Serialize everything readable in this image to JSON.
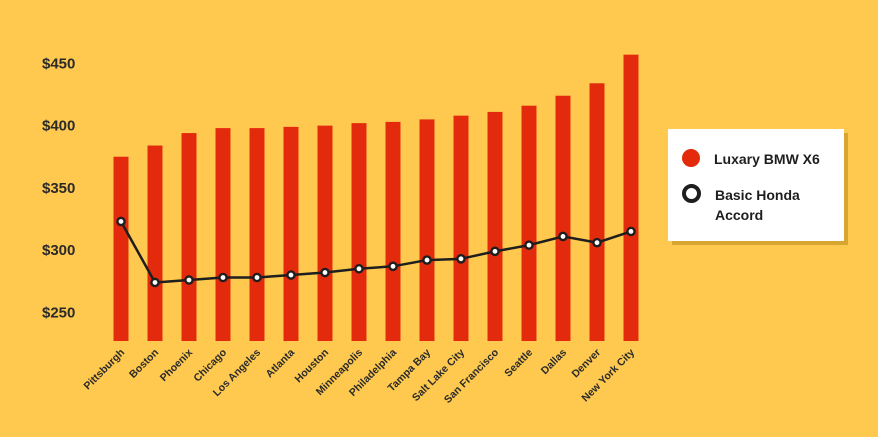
{
  "chart_data": {
    "type": "bar",
    "categories": [
      "Pittsburgh",
      "Boston",
      "Phoenix",
      "Chicago",
      "Los Angeles",
      "Atlanta",
      "Houston",
      "Minneapolis",
      "Philadelphia",
      "Tampa Bay",
      "Salt Lake City",
      "San Francisco",
      "Seattle",
      "Dallas",
      "Denver",
      "New York City"
    ],
    "series": [
      {
        "name": "Luxary BMW X6",
        "type": "bar",
        "color": "#E42A0C",
        "values": [
          375,
          384,
          394,
          398,
          398,
          399,
          400,
          402,
          403,
          405,
          408,
          411,
          416,
          424,
          434,
          457
        ]
      },
      {
        "name": "Basic Honda Accord",
        "type": "line",
        "color": "#1E1E1E",
        "values": [
          323,
          274,
          276,
          278,
          278,
          280,
          282,
          285,
          287,
          292,
          293,
          299,
          304,
          311,
          306,
          315
        ]
      }
    ],
    "yticks": [
      250,
      300,
      350,
      400,
      450
    ],
    "ytick_labels": [
      "$250",
      "$300",
      "$350",
      "$400",
      "$450"
    ],
    "ylim": [
      227,
      461
    ],
    "xlabel": "",
    "ylabel": "",
    "grid": false,
    "legend_position": "right"
  },
  "colors": {
    "background": "#FFC94F",
    "bar": "#E42A0C",
    "line": "#1E1E1E",
    "marker_fill": "#ffffff"
  }
}
